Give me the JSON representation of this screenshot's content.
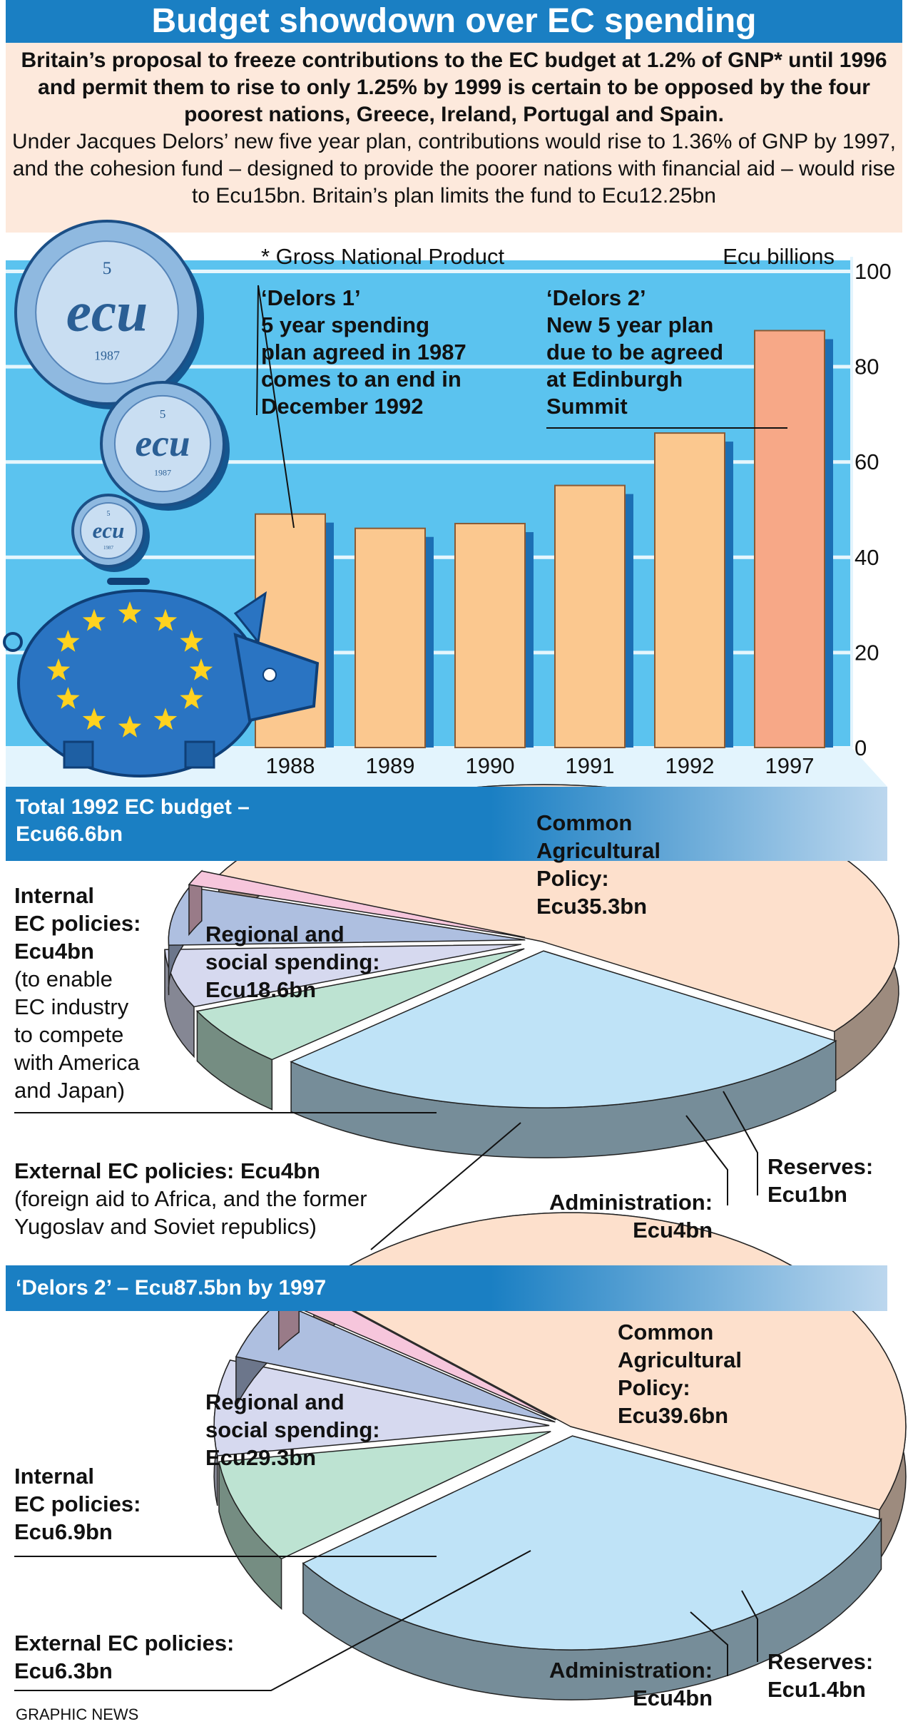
{
  "title": "Budget showdown over EC spending",
  "intro": {
    "lead": "Britain’s proposal to freeze contributions to the EC budget at 1.2% of GNP* until 1996 and permit them to rise to only 1.25% by 1999 is certain to be opposed by the four poorest nations, Greece, Ireland, Portugal and Spain.",
    "body": "Under Jacques Delors’ new five year plan, contributions would rise to 1.36% of GNP by 1997, and the cohesion fund – designed to provide the poorer nations with financial aid – would rise to Ecu15bn. Britain’s plan limits the fund to Ecu12.25bn"
  },
  "footnote": "* Gross National Product",
  "coin_text": "ecu",
  "coin_year": "1987",
  "coin_value": "5",
  "chart_data": [
    {
      "type": "bar",
      "title": "",
      "ylabel": "Ecu billions",
      "ylim": [
        0,
        100
      ],
      "yticks": [
        0,
        20,
        40,
        60,
        80,
        100
      ],
      "categories": [
        "1988",
        "1989",
        "1990",
        "1991",
        "1992",
        "1997"
      ],
      "values": [
        49,
        46,
        47,
        55,
        66,
        87.5
      ],
      "highlight_category": "1997",
      "annotations": [
        {
          "label": "‘Delors 1’",
          "text": [
            "5 year spending",
            "plan agreed in 1987",
            "comes to an end in",
            "December 1992"
          ],
          "target": "1988"
        },
        {
          "label": "‘Delors 2’",
          "text": [
            "New 5 year plan",
            "due to be agreed",
            "at Edinburgh",
            "Summit"
          ],
          "target": "1997"
        }
      ]
    },
    {
      "type": "pie",
      "title": "Total 1992 EC budget – Ecu66.6bn",
      "title_lines": [
        "Total 1992 EC budget –",
        "Ecu66.6bn"
      ],
      "unit": "Ecu billions",
      "slices": [
        {
          "name": "Common Agricultural Policy",
          "value": 35.3,
          "label_lines": [
            "Common",
            "Agricultural",
            "Policy:",
            "Ecu35.3bn"
          ]
        },
        {
          "name": "Regional and social spending",
          "value": 18.6,
          "label_lines": [
            "Regional and",
            "social spending:",
            "Ecu18.6bn"
          ]
        },
        {
          "name": "Internal EC policies",
          "value": 4,
          "label_lines": [
            "Internal",
            "EC policies:",
            "Ecu4bn"
          ],
          "note_lines": [
            "(to enable",
            "EC industry",
            "to compete",
            "with America",
            "and Japan)"
          ]
        },
        {
          "name": "External EC policies",
          "value": 4,
          "label_lines": [
            "External EC policies: Ecu4bn"
          ],
          "note_lines": [
            "(foreign aid to Africa, and the former",
            "Yugoslav and Soviet republics)"
          ]
        },
        {
          "name": "Administration",
          "value": 4,
          "label_lines": [
            "Administration:",
            "Ecu4bn"
          ]
        },
        {
          "name": "Reserves",
          "value": 1,
          "label_lines": [
            "Reserves:",
            "Ecu1bn"
          ]
        }
      ]
    },
    {
      "type": "pie",
      "title": "‘Delors 2’ – Ecu87.5bn by 1997",
      "unit": "Ecu billions",
      "slices": [
        {
          "name": "Common Agricultural Policy",
          "value": 39.6,
          "label_lines": [
            "Common",
            "Agricultural",
            "Policy:",
            "Ecu39.6bn"
          ]
        },
        {
          "name": "Regional and social spending",
          "value": 29.3,
          "label_lines": [
            "Regional and",
            "social spending:",
            "Ecu29.3bn"
          ]
        },
        {
          "name": "Internal EC policies",
          "value": 6.9,
          "label_lines": [
            "Internal",
            "EC policies:",
            "Ecu6.9bn"
          ]
        },
        {
          "name": "External EC policies",
          "value": 6.3,
          "label_lines": [
            "External EC policies:",
            "Ecu6.3bn"
          ]
        },
        {
          "name": "Administration",
          "value": 4,
          "label_lines": [
            "Administration:",
            "Ecu4bn"
          ]
        },
        {
          "name": "Reserves",
          "value": 1.4,
          "label_lines": [
            "Reserves:",
            "Ecu1.4bn"
          ]
        }
      ]
    }
  ],
  "credit": "GRAPHIC NEWS",
  "colors": {
    "brand_blue": "#1a7fc3",
    "sky": "#5bc3ef",
    "bar": "#fbc88f",
    "bar_highlight": "#f7a887",
    "cap": "#fde0cc",
    "regional": "#bfe3f7",
    "internal": "#bde3d2",
    "external": "#d6d9ef",
    "admin": "#aebfe0",
    "reserves": "#f6c6dc"
  }
}
